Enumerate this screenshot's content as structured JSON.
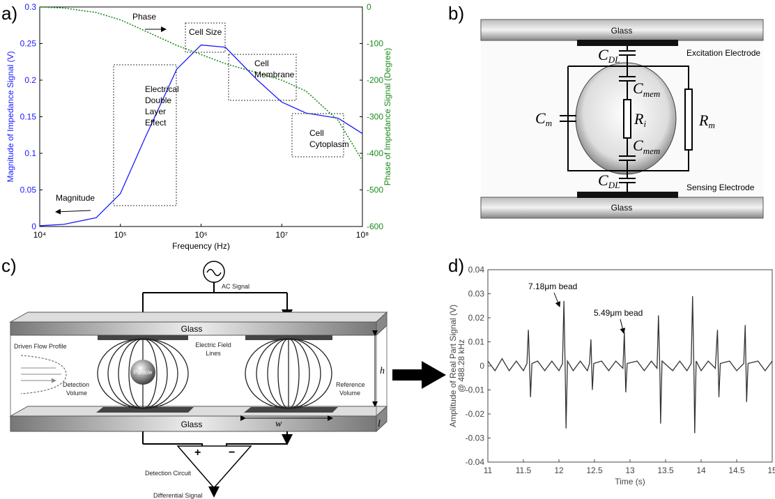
{
  "panel_labels": [
    "a)",
    "b)",
    "c)",
    "d)"
  ],
  "chart_data": [
    {
      "type": "line",
      "xscale": "log",
      "xlabel": "Frequency (Hz)",
      "ylabel": "Magnitude of Impedance Signal (V)",
      "y2label": "Phase of Impedance Signal (Degree)",
      "x": [
        10000,
        20000,
        50000,
        100000,
        200000,
        500000,
        1000000,
        2000000,
        5000000,
        10000000,
        20000000,
        50000000,
        100000000
      ],
      "series": [
        {
          "name": "Magnitude",
          "color": "#1a1aff",
          "linestyle": "solid",
          "values": [
            0.001,
            0.003,
            0.012,
            0.045,
            0.12,
            0.215,
            0.248,
            0.245,
            0.2,
            0.17,
            0.155,
            0.148,
            0.127
          ]
        },
        {
          "name": "Phase",
          "color": "#1a8a1a",
          "linestyle": "dotted",
          "axis": "y2",
          "values": [
            0,
            -3,
            -15,
            -35,
            -65,
            -105,
            -130,
            -155,
            -180,
            -200,
            -230,
            -310,
            -420
          ]
        }
      ],
      "xlim": [
        10000,
        100000000
      ],
      "xticks": [
        {
          "value": 10000,
          "label": "10⁴"
        },
        {
          "value": 100000,
          "label": "10⁵"
        },
        {
          "value": 1000000,
          "label": "10⁶"
        },
        {
          "value": 10000000,
          "label": "10⁷"
        },
        {
          "value": 100000000,
          "label": "10⁸"
        }
      ],
      "ylim": [
        0,
        0.3
      ],
      "yticks": [
        0,
        0.05,
        0.1,
        0.15,
        0.2,
        0.25,
        0.3
      ],
      "y2lim": [
        -600,
        0
      ],
      "y2ticks": [
        -600,
        -500,
        -400,
        -300,
        -200,
        -100,
        0
      ],
      "grid": false,
      "annotations": [
        [
          "Phase"
        ],
        [
          "Magnitude"
        ],
        [
          "Cell Size"
        ],
        [
          "Cell",
          "Membrane"
        ],
        [
          "Electrical",
          "Double",
          "Layer",
          "Effect"
        ],
        [
          "Cell",
          "Cytoplasm"
        ]
      ]
    },
    {
      "type": "line",
      "xscale": "linear",
      "xlabel": "Time (s)",
      "ylabel": [
        "Amplitude of Real Part Signal (V)",
        "@ 488.28 kHz"
      ],
      "x": [
        11,
        11.1,
        11.2,
        11.3,
        11.4,
        11.5,
        11.55,
        11.57,
        11.59,
        11.6,
        11.62,
        11.7,
        11.8,
        11.9,
        12,
        12.05,
        12.07,
        12.09,
        12.1,
        12.12,
        12.2,
        12.3,
        12.4,
        12.43,
        12.45,
        12.47,
        12.49,
        12.6,
        12.7,
        12.8,
        12.9,
        12.92,
        12.94,
        12.96,
        13.1,
        13.2,
        13.3,
        13.38,
        13.4,
        13.42,
        13.43,
        13.45,
        13.6,
        13.7,
        13.8,
        13.86,
        13.88,
        13.9,
        13.91,
        13.93,
        14,
        14.1,
        14.2,
        14.23,
        14.25,
        14.27,
        14.4,
        14.5,
        14.6,
        14.62,
        14.64,
        14.66,
        14.8,
        14.9,
        15
      ],
      "series": [
        {
          "color": "#333333",
          "linestyle": "solid",
          "values": [
            0.002,
            -0.002,
            0.003,
            -0.002,
            0.002,
            -0.002,
            0.001,
            0.015,
            -0.003,
            -0.013,
            0.001,
            0.002,
            -0.002,
            0.002,
            -0.002,
            0.001,
            0.027,
            -0.005,
            -0.026,
            0.002,
            -0.002,
            0.002,
            -0.002,
            0.001,
            0.011,
            -0.01,
            0.001,
            0.002,
            -0.002,
            0.002,
            -0.001,
            0.014,
            -0.011,
            0.001,
            0.002,
            -0.002,
            0.002,
            -0.001,
            0.021,
            -0.003,
            -0.024,
            0.002,
            -0.002,
            0.002,
            -0.002,
            0.001,
            0.029,
            -0.004,
            -0.028,
            0.002,
            -0.002,
            0.002,
            -0.001,
            0.015,
            -0.013,
            0.001,
            0.002,
            -0.002,
            0.001,
            0.017,
            -0.015,
            0.001,
            0.002,
            -0.002,
            0.002
          ]
        }
      ],
      "xlim": [
        11,
        15
      ],
      "xticks": [
        11,
        11.5,
        12,
        12.5,
        13,
        13.5,
        14,
        14.5,
        15
      ],
      "ylim": [
        -0.04,
        0.04
      ],
      "yticks": [
        -0.04,
        -0.03,
        -0.02,
        -0.01,
        0,
        0.01,
        0.02,
        0.03,
        0.04
      ],
      "grid": false,
      "annotations": [
        [
          "7.18μm bead"
        ],
        [
          "5.49μm bead"
        ]
      ]
    }
  ],
  "circuit": {
    "glass_top": "Glass",
    "glass_bottom": "Glass",
    "excitation": "Excitation Electrode",
    "sensing": "Sensing Electrode",
    "c_dl_top": {
      "symbol": "C",
      "sub": "DL"
    },
    "c_dl_bottom": {
      "symbol": "C",
      "sub": "DL"
    },
    "c_mem_top": {
      "symbol": "C",
      "sub": "mem"
    },
    "c_mem_bottom": {
      "symbol": "C",
      "sub": "mem"
    },
    "c_m": {
      "symbol": "C",
      "sub": "m"
    },
    "r_i": {
      "symbol": "R",
      "sub": "i"
    },
    "r_m": {
      "symbol": "R",
      "sub": "m"
    }
  },
  "sensor": {
    "ac_signal": "AC Signal",
    "glass_top": "Glass",
    "glass_bottom": "Glass",
    "flow": "Driven Flow Profile",
    "field_lines": [
      "Electric Field",
      "Lines"
    ],
    "particle": "Particle",
    "detection_volume": [
      "Detection",
      "Volume"
    ],
    "reference_volume": [
      "Reference",
      "Volume"
    ],
    "h": "h",
    "w": "w",
    "l": "l",
    "plus": "+",
    "minus": "−",
    "detection_circuit": "Detection Circuit",
    "differential_signal": "Differential Signal"
  }
}
